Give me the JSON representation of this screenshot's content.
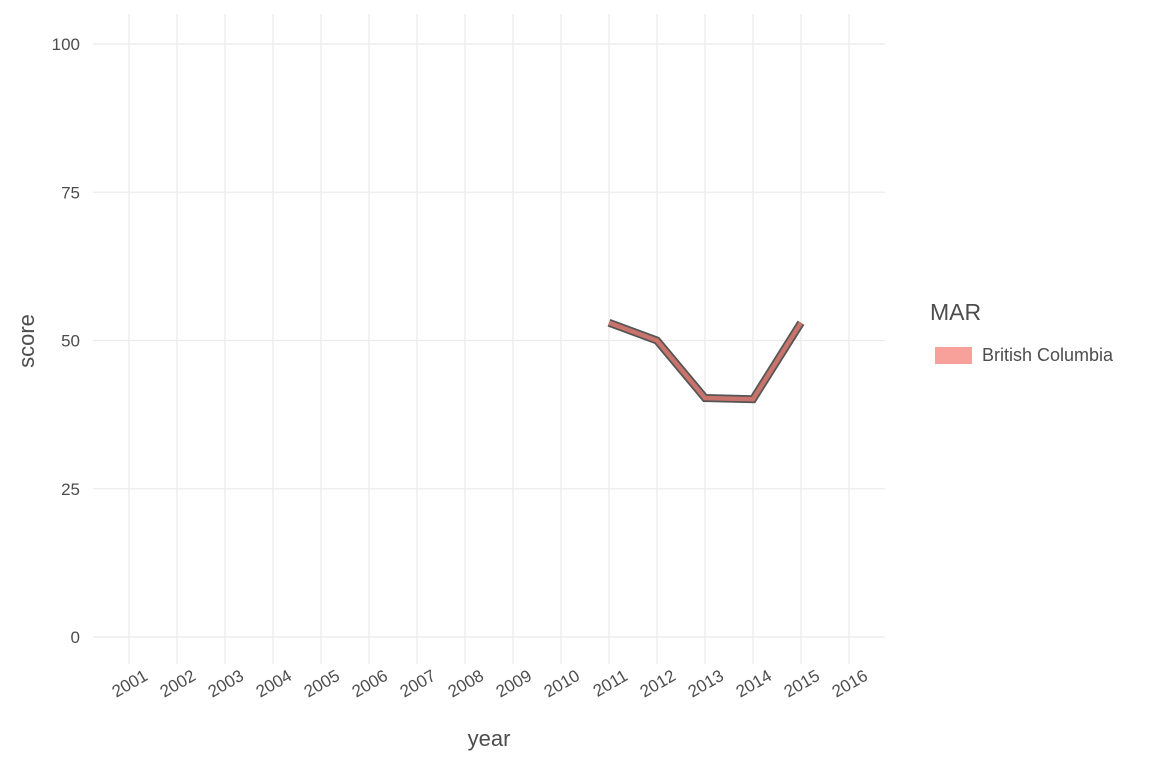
{
  "chart_data": {
    "type": "line",
    "title": "",
    "xlabel": "year",
    "ylabel": "score",
    "categories": [
      "2001",
      "2002",
      "2003",
      "2004",
      "2005",
      "2006",
      "2007",
      "2008",
      "2009",
      "2010",
      "2011",
      "2012",
      "2013",
      "2014",
      "2015",
      "2016"
    ],
    "yticks": [
      0,
      25,
      50,
      75,
      100
    ],
    "ylim": [
      0,
      100
    ],
    "grid": true,
    "legend": {
      "title": "MAR",
      "position": "right",
      "entries": [
        {
          "name": "British Columbia",
          "color": "#f8a19b"
        }
      ]
    },
    "series": [
      {
        "name": "British Columbia",
        "color": "#c8736b",
        "outline": "#555555",
        "points": [
          {
            "x": "2011",
            "y": 53
          },
          {
            "x": "2012",
            "y": 50
          },
          {
            "x": "2013",
            "y": 40.3
          },
          {
            "x": "2014",
            "y": 40.1
          },
          {
            "x": "2015",
            "y": 53
          }
        ]
      }
    ]
  }
}
